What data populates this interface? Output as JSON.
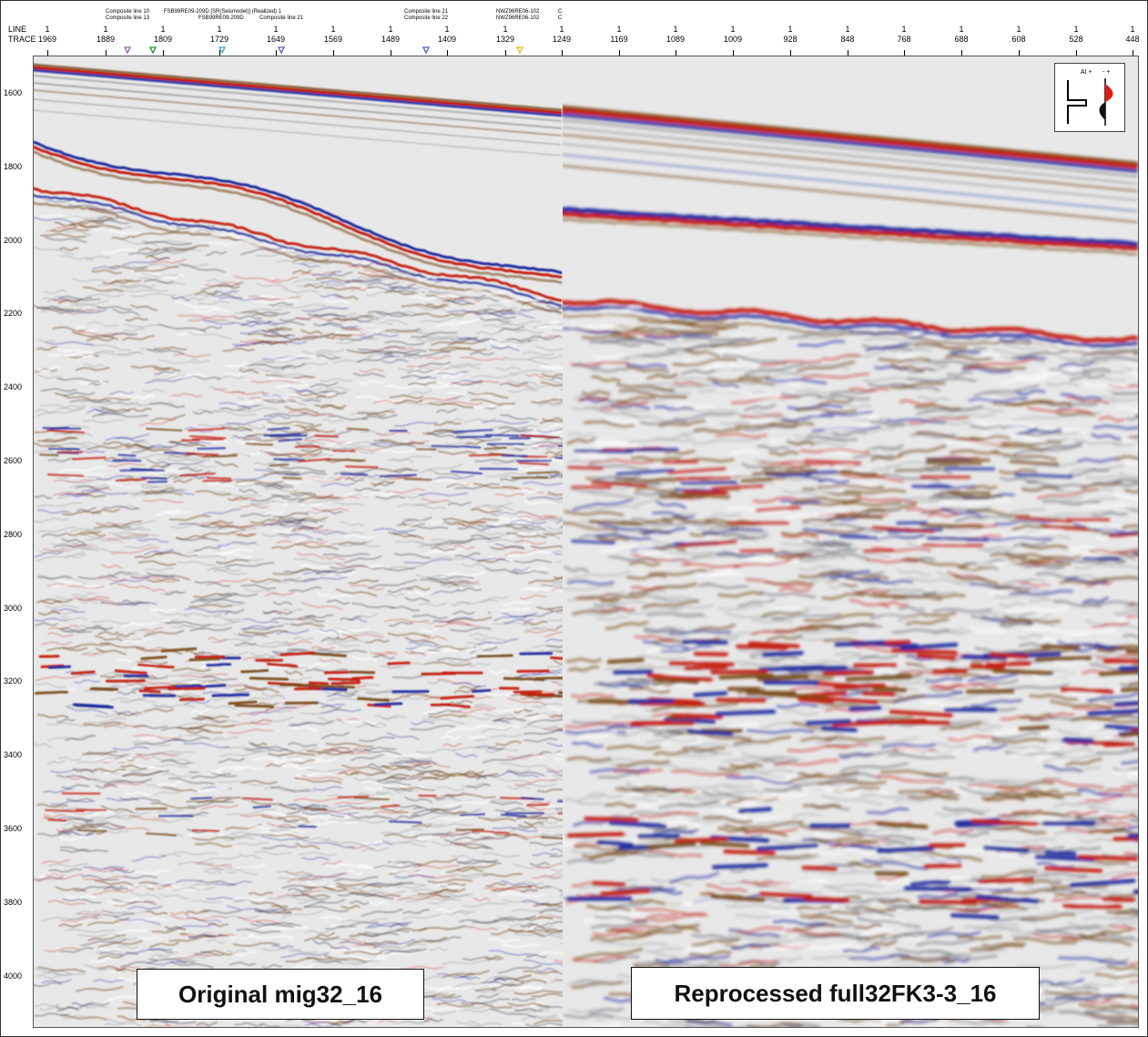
{
  "header": {
    "line_label": "LINE",
    "trace_label": "TRACE",
    "line_values": [
      "1",
      "1",
      "1",
      "1",
      "1",
      "1",
      "1",
      "1",
      "1",
      "1",
      "1",
      "C",
      "1",
      "1",
      "1",
      "1",
      "1",
      "1",
      "1",
      "1",
      "1",
      "1"
    ],
    "trace_values": [
      "1969",
      "1889",
      "1809",
      "1729",
      "1649",
      "1569",
      "1489",
      "1409",
      "1329",
      "1249",
      "1169",
      "1089",
      "1009",
      "928",
      "848",
      "768",
      "688",
      "608",
      "528",
      "448"
    ],
    "annotations": [
      "Composite line 10",
      "Composite line 13",
      "FSB99RE09-209D [SR(Seismodel)] (Realized) 1",
      "FSB99RE09-209D",
      "Composite line 21",
      "Composite line 21",
      "Composite line 22",
      "NWZ96RE06-102",
      "NWZ96RE06-102",
      "C",
      "C"
    ]
  },
  "y_axis": {
    "labels": [
      "1600",
      "1800",
      "2000",
      "2200",
      "2400",
      "2600",
      "2800",
      "3000",
      "3200",
      "3400",
      "3600",
      "3800",
      "4000"
    ]
  },
  "legend": {
    "ai_label": "AI +",
    "minus_plus": "-  +"
  },
  "captions": {
    "left": "Original mig32_16",
    "right": "Reprocessed full32FK3-3_16"
  },
  "colors": {
    "positive": "#c41a10",
    "negative": "#1d2a9e",
    "brown": "#7a4e1e",
    "background": "#e9e9e9"
  }
}
